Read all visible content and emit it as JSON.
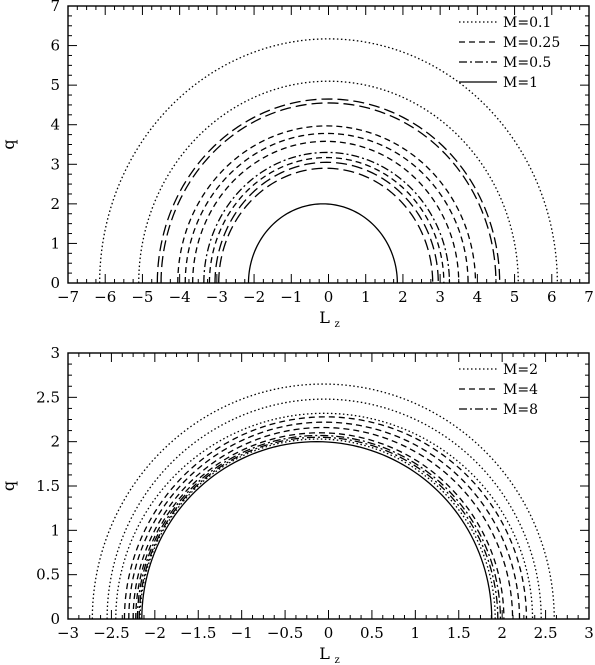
{
  "chart_data": [
    {
      "type": "line",
      "title": "",
      "xlabel": "L",
      "xlabel_sub": "z",
      "ylabel": "q",
      "xlim": [
        -7,
        7
      ],
      "ylim": [
        0,
        7
      ],
      "xticks": [
        -7,
        -6,
        -5,
        -4,
        -3,
        -2,
        -1,
        0,
        1,
        2,
        3,
        4,
        5,
        6,
        7
      ],
      "yticks": [
        0,
        1,
        2,
        3,
        4,
        5,
        6,
        7
      ],
      "legend_position": "top-right",
      "legend": [
        {
          "label": "M=0.1",
          "style": "dotted"
        },
        {
          "label": "M=0.25",
          "style": "dashed"
        },
        {
          "label": "M=0.5",
          "style": "dashdot"
        },
        {
          "label": "M=1",
          "style": "solid"
        }
      ],
      "series": [
        {
          "style": "dotted",
          "left": -6.15,
          "right": 6.15,
          "peak": 6.17
        },
        {
          "style": "dotted",
          "left": -5.1,
          "right": 5.1,
          "peak": 5.1
        },
        {
          "style": "longdash",
          "left": -4.6,
          "right": 4.6,
          "peak": 4.65
        },
        {
          "style": "longdash",
          "left": -4.5,
          "right": 4.5,
          "peak": 4.55
        },
        {
          "style": "dashed",
          "left": -4.05,
          "right": 3.95,
          "peak": 3.97
        },
        {
          "style": "dashed",
          "left": -3.85,
          "right": 3.75,
          "peak": 3.78
        },
        {
          "style": "dashed",
          "left": -3.65,
          "right": 3.5,
          "peak": 3.58
        },
        {
          "style": "dashdot",
          "left": -3.35,
          "right": 3.25,
          "peak": 3.3
        },
        {
          "style": "dashed",
          "left": -3.2,
          "right": 3.1,
          "peak": 3.17
        },
        {
          "style": "longdash",
          "left": -3.05,
          "right": 2.95,
          "peak": 3.05
        },
        {
          "style": "longdash",
          "left": -2.95,
          "right": 2.8,
          "peak": 2.9
        },
        {
          "style": "solid",
          "left": -2.15,
          "right": 1.85,
          "peak": 2.0
        }
      ]
    },
    {
      "type": "line",
      "title": "",
      "xlabel": "L",
      "xlabel_sub": "z",
      "ylabel": "q",
      "xlim": [
        -3,
        3
      ],
      "ylim": [
        0,
        3
      ],
      "xticks": [
        -3,
        -2.5,
        -2,
        -1.5,
        -1,
        -0.5,
        0,
        0.5,
        1,
        1.5,
        2,
        2.5,
        3
      ],
      "yticks": [
        0,
        0.5,
        1,
        1.5,
        2,
        2.5,
        3
      ],
      "legend_position": "top-right",
      "legend": [
        {
          "label": "M=2",
          "style": "dotted"
        },
        {
          "label": "M=4",
          "style": "dashed"
        },
        {
          "label": "M=8",
          "style": "dashdot"
        }
      ],
      "series": [
        {
          "style": "dotted",
          "left": -2.72,
          "right": 2.6,
          "peak": 2.65
        },
        {
          "style": "dotted",
          "left": -2.55,
          "right": 2.45,
          "peak": 2.48
        },
        {
          "style": "dotted",
          "left": -2.45,
          "right": 2.35,
          "peak": 2.32
        },
        {
          "style": "dashed",
          "left": -2.35,
          "right": 2.28,
          "peak": 2.28
        },
        {
          "style": "dashed",
          "left": -2.3,
          "right": 2.2,
          "peak": 2.22
        },
        {
          "style": "dashed",
          "left": -2.25,
          "right": 2.12,
          "peak": 2.16
        },
        {
          "style": "dashed",
          "left": -2.22,
          "right": 2.02,
          "peak": 2.1
        },
        {
          "style": "dashdot",
          "left": -2.2,
          "right": 1.98,
          "peak": 2.07
        },
        {
          "style": "dashdot",
          "left": -2.18,
          "right": 1.95,
          "peak": 2.05
        },
        {
          "style": "dotted",
          "left": -2.17,
          "right": 1.92,
          "peak": 2.03
        },
        {
          "style": "solid",
          "left": -2.15,
          "right": 1.88,
          "peak": 2.0
        }
      ]
    }
  ]
}
